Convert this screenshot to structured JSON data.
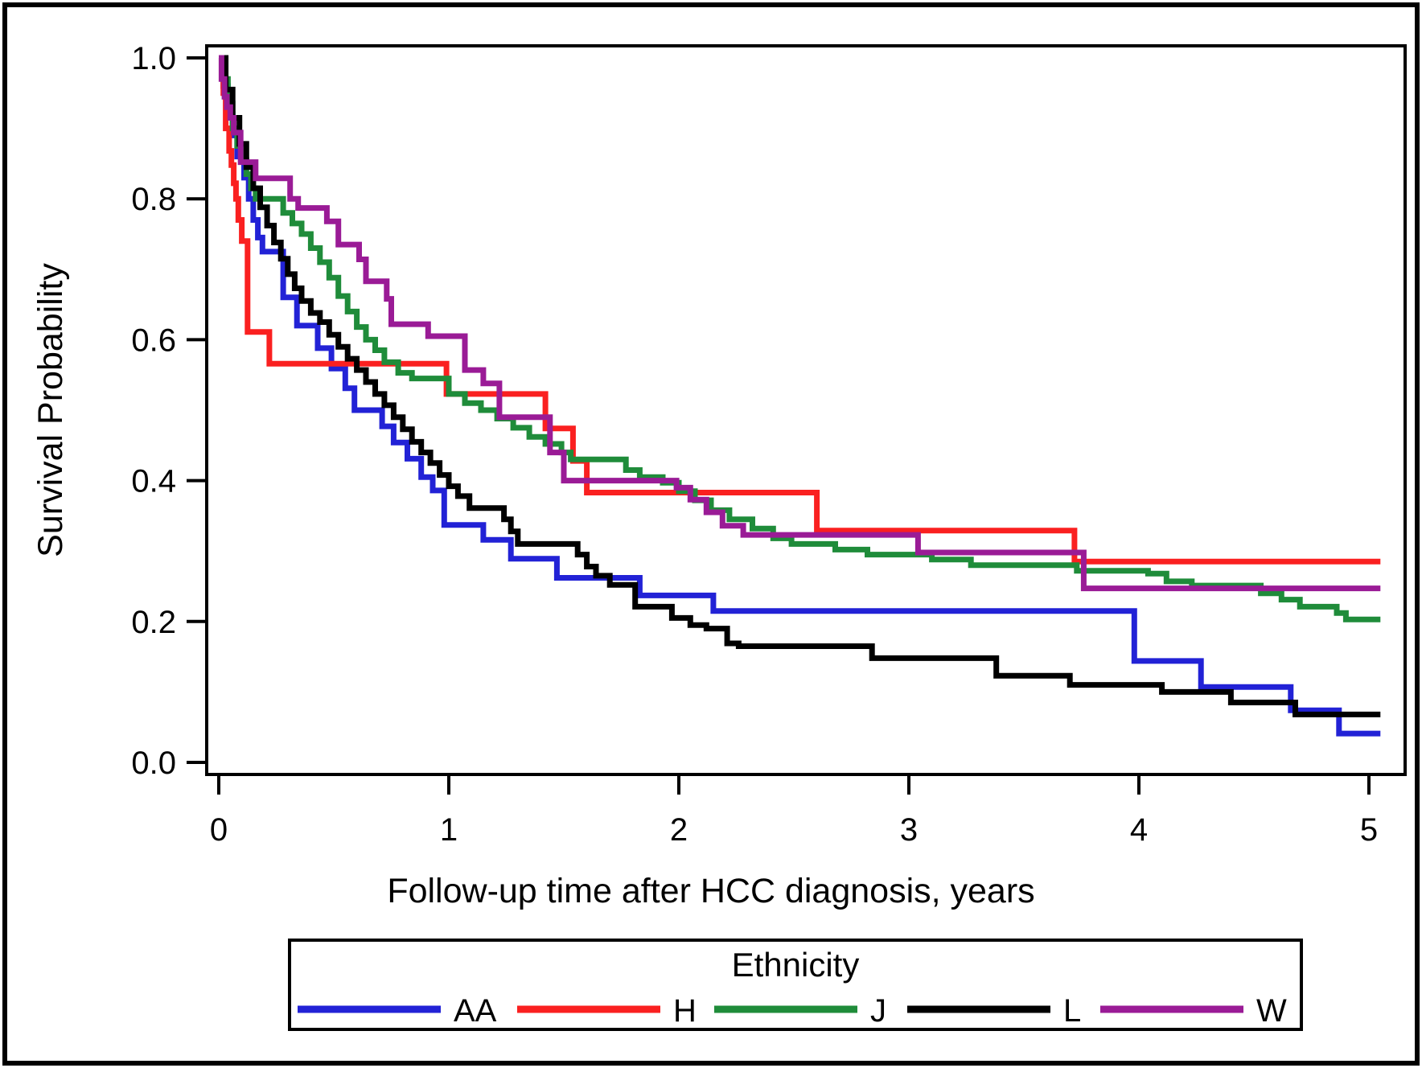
{
  "figure": {
    "kind": "kaplan-meier-survival-plot",
    "border_color": "#000000",
    "background": "#ffffff"
  },
  "chart_data": {
    "type": "line",
    "subtype": "step-survival",
    "title": "",
    "xlabel": "Follow-up time after HCC diagnosis, years",
    "ylabel": "Survival Probability",
    "xlim": [
      0,
      5.05
    ],
    "ylim": [
      0.0,
      1.0
    ],
    "x_ticks": [
      "0",
      "1",
      "2",
      "3",
      "4",
      "5"
    ],
    "y_ticks": [
      "0.0",
      "0.2",
      "0.4",
      "0.6",
      "0.8",
      "1.0"
    ],
    "grid": false,
    "legend": {
      "title": "Ethnicity",
      "position": "bottom",
      "entries": [
        {
          "label": "AA",
          "color": "#2222d6"
        },
        {
          "label": "H",
          "color": "#fa2020"
        },
        {
          "label": "J",
          "color": "#1f8c3a"
        },
        {
          "label": "L",
          "color": "#000000"
        },
        {
          "label": "W",
          "color": "#9a1b96"
        }
      ]
    },
    "series": [
      {
        "name": "AA",
        "color": "#2222d6",
        "steps": [
          [
            0,
            1.0
          ],
          [
            0.02,
            0.96
          ],
          [
            0.04,
            0.92
          ],
          [
            0.06,
            0.89
          ],
          [
            0.08,
            0.86
          ],
          [
            0.11,
            0.83
          ],
          [
            0.13,
            0.8
          ],
          [
            0.15,
            0.77
          ],
          [
            0.17,
            0.745
          ],
          [
            0.19,
            0.725
          ],
          [
            0.28,
            0.66
          ],
          [
            0.34,
            0.62
          ],
          [
            0.43,
            0.588
          ],
          [
            0.49,
            0.559
          ],
          [
            0.55,
            0.531
          ],
          [
            0.59,
            0.5
          ],
          [
            0.71,
            0.477
          ],
          [
            0.76,
            0.454
          ],
          [
            0.82,
            0.431
          ],
          [
            0.88,
            0.405
          ],
          [
            0.93,
            0.386
          ],
          [
            0.98,
            0.337
          ],
          [
            1.15,
            0.316
          ],
          [
            1.27,
            0.289
          ],
          [
            1.47,
            0.262
          ],
          [
            1.83,
            0.237
          ],
          [
            2.15,
            0.215
          ],
          [
            3.98,
            0.144
          ],
          [
            4.27,
            0.107
          ],
          [
            4.66,
            0.074
          ],
          [
            4.87,
            0.041
          ],
          [
            5.05,
            0.041
          ]
        ]
      },
      {
        "name": "H",
        "color": "#fa2020",
        "steps": [
          [
            0,
            1.0
          ],
          [
            0.02,
            0.95
          ],
          [
            0.03,
            0.9
          ],
          [
            0.045,
            0.868
          ],
          [
            0.055,
            0.848
          ],
          [
            0.065,
            0.822
          ],
          [
            0.075,
            0.8
          ],
          [
            0.085,
            0.77
          ],
          [
            0.1,
            0.74
          ],
          [
            0.125,
            0.611
          ],
          [
            0.22,
            0.566
          ],
          [
            0.99,
            0.523
          ],
          [
            1.42,
            0.474
          ],
          [
            1.54,
            0.428
          ],
          [
            1.6,
            0.383
          ],
          [
            2.6,
            0.329
          ],
          [
            3.72,
            0.285
          ],
          [
            5.05,
            0.285
          ]
        ]
      },
      {
        "name": "J",
        "color": "#1f8c3a",
        "steps": [
          [
            0,
            1.0
          ],
          [
            0.02,
            0.97
          ],
          [
            0.04,
            0.935
          ],
          [
            0.06,
            0.9
          ],
          [
            0.08,
            0.875
          ],
          [
            0.1,
            0.855
          ],
          [
            0.12,
            0.835
          ],
          [
            0.14,
            0.815
          ],
          [
            0.16,
            0.8
          ],
          [
            0.28,
            0.78
          ],
          [
            0.32,
            0.765
          ],
          [
            0.36,
            0.75
          ],
          [
            0.4,
            0.73
          ],
          [
            0.44,
            0.71
          ],
          [
            0.48,
            0.688
          ],
          [
            0.52,
            0.662
          ],
          [
            0.56,
            0.64
          ],
          [
            0.6,
            0.618
          ],
          [
            0.64,
            0.6
          ],
          [
            0.68,
            0.585
          ],
          [
            0.72,
            0.568
          ],
          [
            0.78,
            0.553
          ],
          [
            0.84,
            0.545
          ],
          [
            1.0,
            0.523
          ],
          [
            1.07,
            0.51
          ],
          [
            1.14,
            0.5
          ],
          [
            1.21,
            0.488
          ],
          [
            1.28,
            0.475
          ],
          [
            1.35,
            0.462
          ],
          [
            1.42,
            0.452
          ],
          [
            1.49,
            0.44
          ],
          [
            1.53,
            0.43
          ],
          [
            1.77,
            0.415
          ],
          [
            1.83,
            0.405
          ],
          [
            1.93,
            0.397
          ],
          [
            2.0,
            0.385
          ],
          [
            2.07,
            0.372
          ],
          [
            2.14,
            0.358
          ],
          [
            2.22,
            0.345
          ],
          [
            2.32,
            0.332
          ],
          [
            2.41,
            0.318
          ],
          [
            2.49,
            0.31
          ],
          [
            2.68,
            0.302
          ],
          [
            2.82,
            0.295
          ],
          [
            3.1,
            0.288
          ],
          [
            3.27,
            0.28
          ],
          [
            3.73,
            0.272
          ],
          [
            4.04,
            0.268
          ],
          [
            4.12,
            0.257
          ],
          [
            4.23,
            0.251
          ],
          [
            4.53,
            0.24
          ],
          [
            4.62,
            0.231
          ],
          [
            4.7,
            0.221
          ],
          [
            4.86,
            0.212
          ],
          [
            4.9,
            0.203
          ],
          [
            5.05,
            0.203
          ]
        ]
      },
      {
        "name": "L",
        "color": "#000000",
        "steps": [
          [
            0,
            1.0
          ],
          [
            0.03,
            0.955
          ],
          [
            0.06,
            0.915
          ],
          [
            0.09,
            0.878
          ],
          [
            0.12,
            0.845
          ],
          [
            0.15,
            0.815
          ],
          [
            0.18,
            0.788
          ],
          [
            0.21,
            0.762
          ],
          [
            0.24,
            0.738
          ],
          [
            0.27,
            0.715
          ],
          [
            0.3,
            0.693
          ],
          [
            0.33,
            0.673
          ],
          [
            0.36,
            0.655
          ],
          [
            0.4,
            0.638
          ],
          [
            0.44,
            0.625
          ],
          [
            0.48,
            0.607
          ],
          [
            0.52,
            0.59
          ],
          [
            0.56,
            0.573
          ],
          [
            0.6,
            0.557
          ],
          [
            0.64,
            0.54
          ],
          [
            0.68,
            0.523
          ],
          [
            0.72,
            0.507
          ],
          [
            0.76,
            0.49
          ],
          [
            0.8,
            0.473
          ],
          [
            0.84,
            0.455
          ],
          [
            0.88,
            0.44
          ],
          [
            0.92,
            0.425
          ],
          [
            0.96,
            0.408
          ],
          [
            1.0,
            0.392
          ],
          [
            1.04,
            0.378
          ],
          [
            1.09,
            0.361
          ],
          [
            1.24,
            0.345
          ],
          [
            1.27,
            0.328
          ],
          [
            1.3,
            0.31
          ],
          [
            1.56,
            0.295
          ],
          [
            1.6,
            0.278
          ],
          [
            1.64,
            0.265
          ],
          [
            1.7,
            0.252
          ],
          [
            1.81,
            0.221
          ],
          [
            1.97,
            0.205
          ],
          [
            2.05,
            0.195
          ],
          [
            2.12,
            0.19
          ],
          [
            2.21,
            0.169
          ],
          [
            2.26,
            0.165
          ],
          [
            2.84,
            0.148
          ],
          [
            3.38,
            0.123
          ],
          [
            3.7,
            0.11
          ],
          [
            4.1,
            0.1
          ],
          [
            4.4,
            0.085
          ],
          [
            4.68,
            0.068
          ],
          [
            5.05,
            0.068
          ]
        ]
      },
      {
        "name": "W",
        "color": "#9a1b96",
        "steps": [
          [
            0,
            1.0
          ],
          [
            0.012,
            0.97
          ],
          [
            0.025,
            0.945
          ],
          [
            0.035,
            0.93
          ],
          [
            0.05,
            0.915
          ],
          [
            0.065,
            0.894
          ],
          [
            0.095,
            0.852
          ],
          [
            0.16,
            0.829
          ],
          [
            0.31,
            0.8
          ],
          [
            0.345,
            0.787
          ],
          [
            0.47,
            0.768
          ],
          [
            0.52,
            0.735
          ],
          [
            0.61,
            0.714
          ],
          [
            0.64,
            0.683
          ],
          [
            0.73,
            0.658
          ],
          [
            0.75,
            0.622
          ],
          [
            0.91,
            0.605
          ],
          [
            1.07,
            0.557
          ],
          [
            1.15,
            0.538
          ],
          [
            1.22,
            0.49
          ],
          [
            1.44,
            0.44
          ],
          [
            1.5,
            0.4
          ],
          [
            1.99,
            0.39
          ],
          [
            2.05,
            0.373
          ],
          [
            2.12,
            0.355
          ],
          [
            2.19,
            0.336
          ],
          [
            2.28,
            0.323
          ],
          [
            3.04,
            0.298
          ],
          [
            3.76,
            0.247
          ],
          [
            5.05,
            0.247
          ]
        ]
      }
    ]
  }
}
